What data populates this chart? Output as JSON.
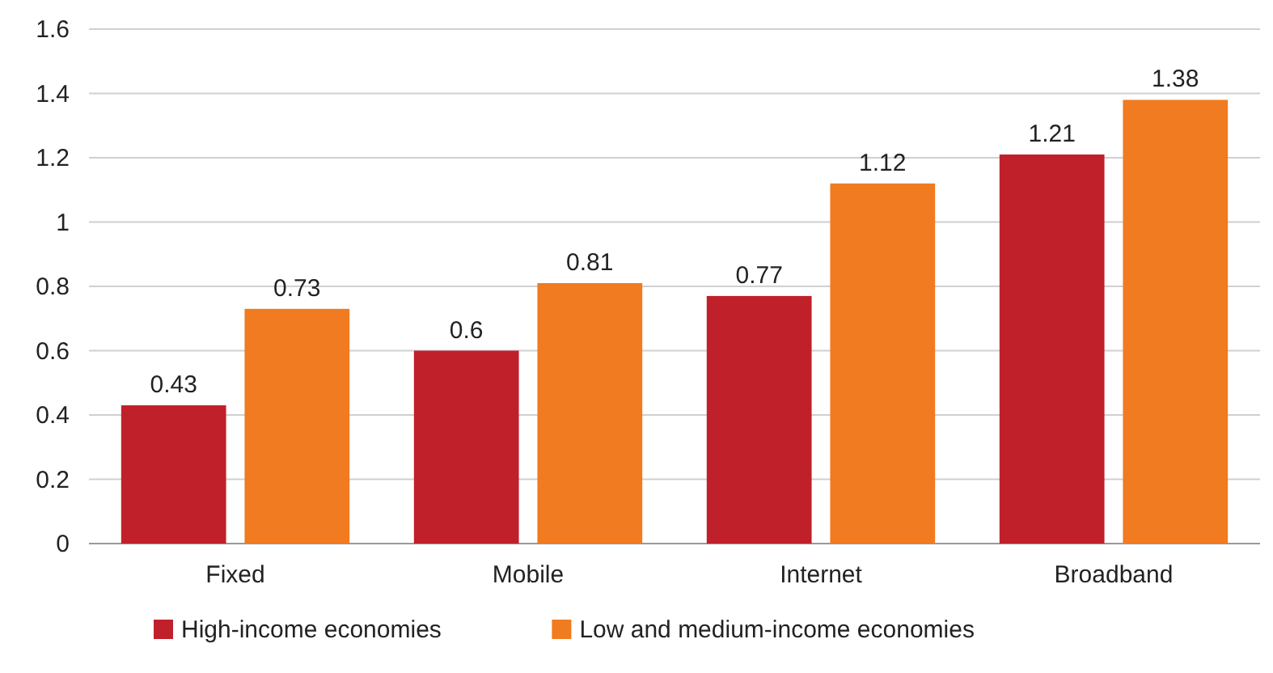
{
  "chart_data": {
    "type": "bar",
    "categories": [
      "Fixed",
      "Mobile",
      "Internet",
      "Broadband"
    ],
    "series": [
      {
        "name": "High-income economies",
        "color": "#c0202a",
        "values": [
          0.43,
          0.6,
          0.77,
          1.21
        ]
      },
      {
        "name": "Low and medium-income economies",
        "color": "#f07b20",
        "values": [
          0.73,
          0.81,
          1.12,
          1.38
        ]
      }
    ],
    "ylim": [
      0,
      1.6
    ],
    "yticks": [
      0,
      0.2,
      0.4,
      0.6,
      0.8,
      1,
      1.2,
      1.4,
      1.6
    ],
    "grid": "y",
    "legend": "bottom",
    "data_labels": true
  }
}
